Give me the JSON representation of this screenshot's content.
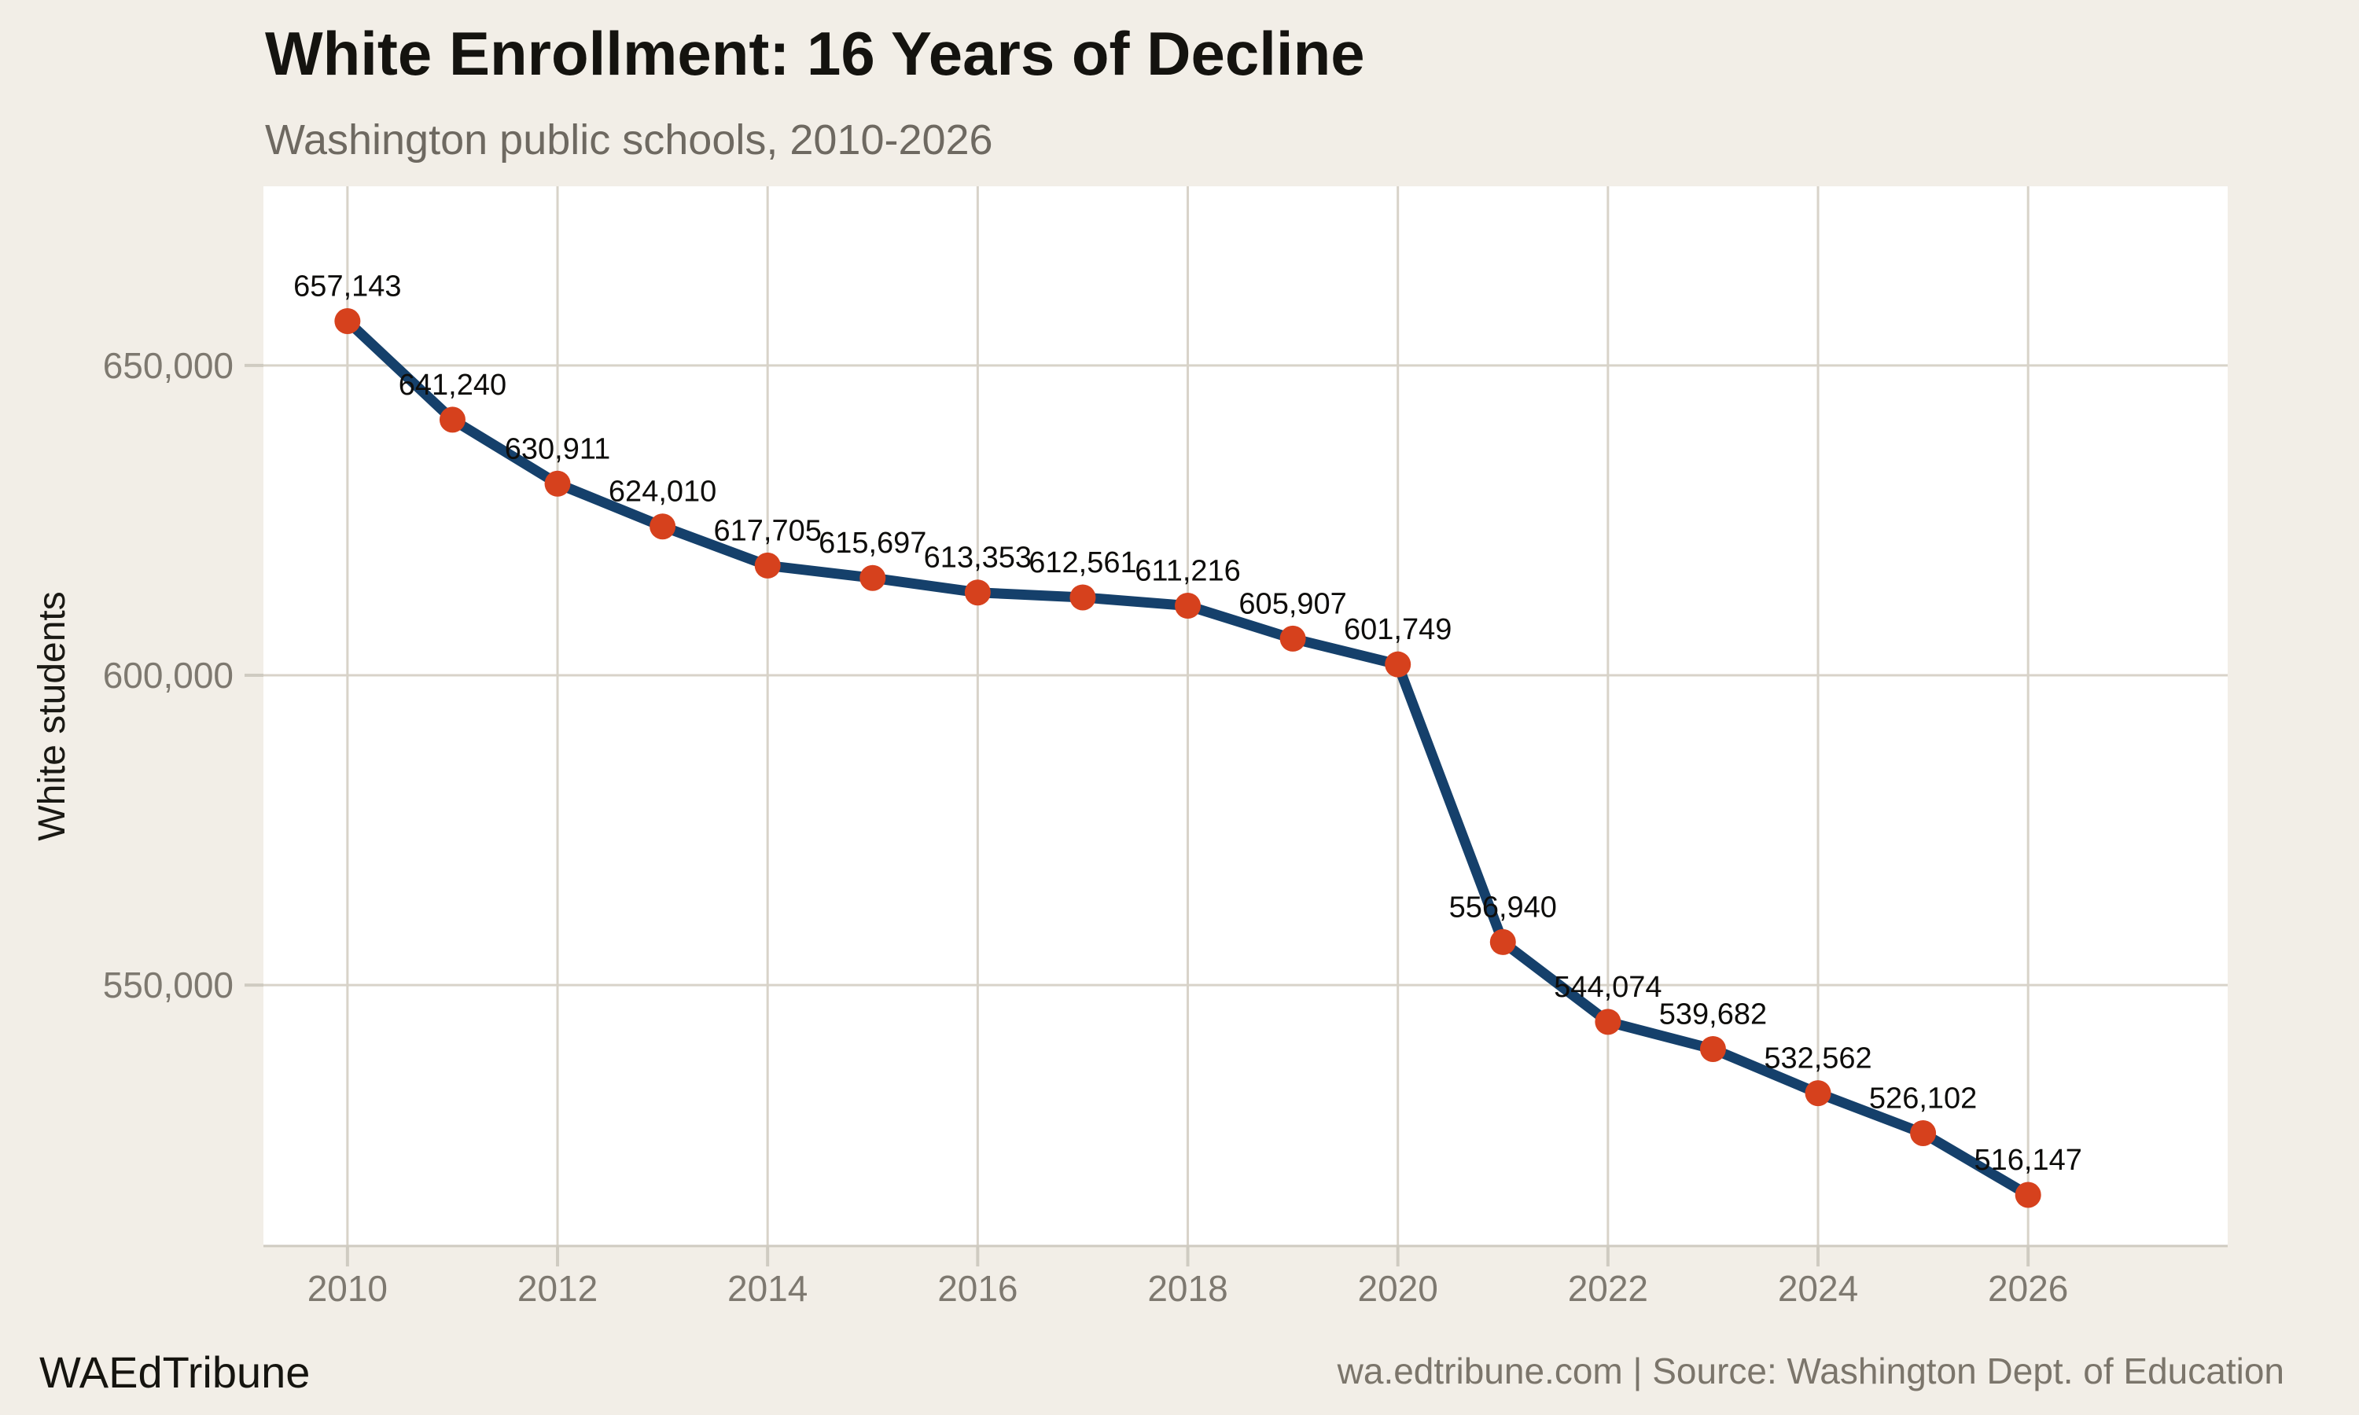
{
  "header": {
    "title": "White Enrollment: 16 Years of Decline",
    "subtitle": "Washington public schools, 2010-2026"
  },
  "footer": {
    "brand": "WAEdTribune",
    "source": "wa.edtribune.com | Source: Washington Dept. of Education"
  },
  "colors": {
    "background": "#f2eee7",
    "panel": "#ffffff",
    "gridline": "#d8d3c9",
    "axis": "#cfcbc1",
    "line": "#15406b",
    "marker": "#d6411d",
    "title": "#14130f",
    "subtitle": "#6e6961",
    "tick_label": "#7e7970",
    "point_label": "#0e0d0b"
  },
  "chart_data": {
    "type": "line",
    "title": "White Enrollment: 16 Years of Decline",
    "subtitle": "Washington public schools, 2010-2026",
    "xlabel": "",
    "ylabel": "White students",
    "x": [
      2010,
      2011,
      2012,
      2013,
      2014,
      2015,
      2016,
      2017,
      2018,
      2019,
      2020,
      2021,
      2022,
      2023,
      2024,
      2025,
      2026
    ],
    "values": [
      657143,
      641240,
      630911,
      624010,
      617705,
      615697,
      613353,
      612561,
      611216,
      605907,
      601749,
      556940,
      544074,
      539682,
      532562,
      526102,
      516147
    ],
    "point_labels": [
      "657,143",
      "641,240",
      "630,911",
      "624,010",
      "617,705",
      "615,697",
      "613,353",
      "612,561",
      "611,216",
      "605,907",
      "601,749",
      "556,940",
      "544,074",
      "539,682",
      "532,562",
      "526,102",
      "516,147"
    ],
    "xticks": [
      2010,
      2012,
      2014,
      2016,
      2018,
      2020,
      2022,
      2024,
      2026
    ],
    "yticks": [
      550000,
      600000,
      650000
    ],
    "ytick_labels": [
      "550,000",
      "600,000",
      "650,000"
    ],
    "xlim": [
      2009.2,
      2027.9
    ],
    "ylim": [
      507900,
      678900
    ],
    "grid": true,
    "legend": false,
    "marker": "circle",
    "line_color": "#15406b",
    "marker_color": "#d6411d"
  }
}
